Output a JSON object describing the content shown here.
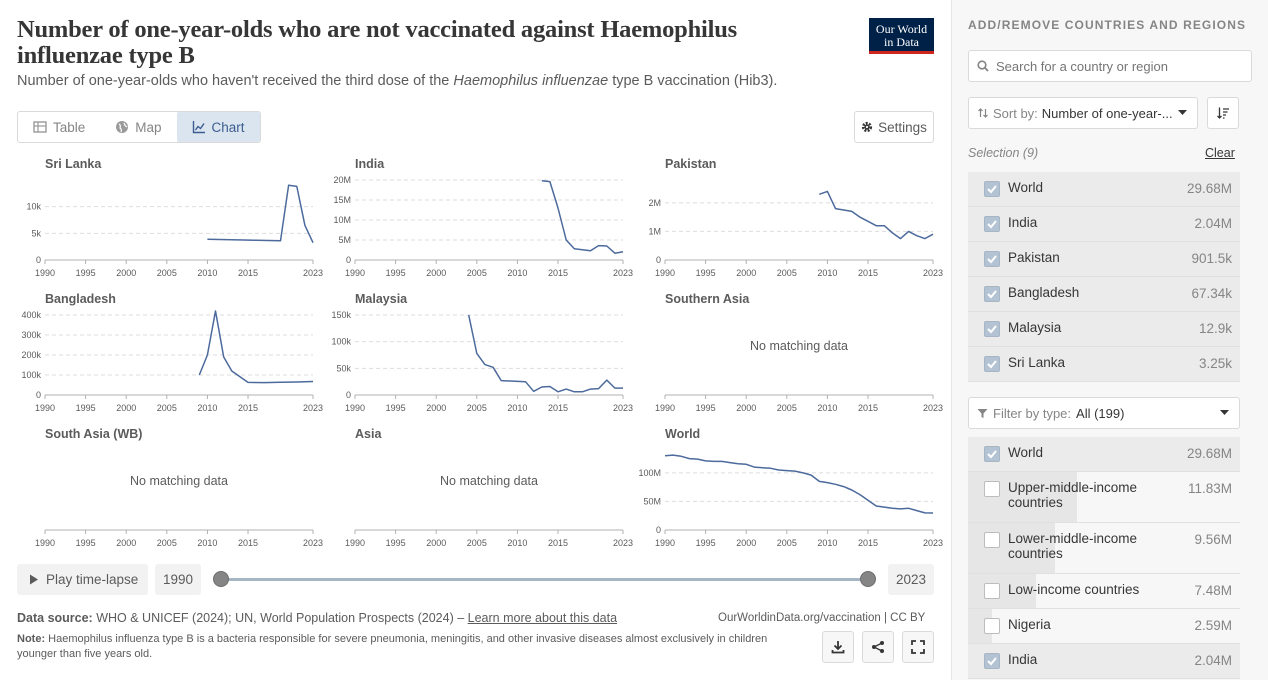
{
  "header": {
    "title": "Number of one-year-olds who are not vaccinated against Haemophilus influenzae type B",
    "subtitle_pre": "Number of one-year-olds who haven't received the third dose of the ",
    "subtitle_italic": "Haemophilus influenzae",
    "subtitle_post": " type B vaccination (Hib3).",
    "logo_line1": "Our World",
    "logo_line2": "in Data"
  },
  "tabs": [
    {
      "label": "Table",
      "icon": "table-icon"
    },
    {
      "label": "Map",
      "icon": "globe-icon"
    },
    {
      "label": "Chart",
      "icon": "line-chart-icon",
      "active": true
    }
  ],
  "settings_label": "Settings",
  "no_data_text": "No matching data",
  "chart_data": [
    {
      "type": "line",
      "title": "Sri Lanka",
      "xlim": [
        1990,
        2023
      ],
      "xticks": [
        "1990",
        "1995",
        "2000",
        "2005",
        "2010",
        "2015",
        "2023"
      ],
      "yticks": [
        "0",
        "5k",
        "10k"
      ],
      "ylim": [
        0,
        15000
      ],
      "x": [
        2010,
        2013,
        2016,
        2019,
        2020,
        2021,
        2022,
        2023
      ],
      "values": [
        3900,
        3800,
        3700,
        3600,
        14000,
        13800,
        6500,
        3250
      ]
    },
    {
      "type": "line",
      "title": "India",
      "xlim": [
        1990,
        2023
      ],
      "xticks": [
        "1990",
        "1995",
        "2000",
        "2005",
        "2010",
        "2015",
        "2023"
      ],
      "yticks": [
        "0",
        "5M",
        "10M",
        "15M",
        "20M"
      ],
      "ylim": [
        0,
        20000000
      ],
      "x": [
        2013,
        2014,
        2015,
        2016,
        2017,
        2019,
        2020,
        2021,
        2022,
        2023
      ],
      "values": [
        19800000,
        19600000,
        13000000,
        5000000,
        2800000,
        2300000,
        3600000,
        3500000,
        1700000,
        2040000
      ]
    },
    {
      "type": "line",
      "title": "Pakistan",
      "xlim": [
        1990,
        2023
      ],
      "xticks": [
        "1990",
        "1995",
        "2000",
        "2005",
        "2010",
        "2015",
        "2023"
      ],
      "yticks": [
        "0",
        "1M",
        "2M"
      ],
      "ylim": [
        0,
        2800000
      ],
      "x": [
        2009,
        2010,
        2011,
        2013,
        2014,
        2016,
        2017,
        2018,
        2019,
        2020,
        2021,
        2022,
        2023
      ],
      "values": [
        2300000,
        2400000,
        1800000,
        1700000,
        1500000,
        1200000,
        1200000,
        950000,
        750000,
        1000000,
        850000,
        750000,
        901500
      ]
    },
    {
      "type": "line",
      "title": "Bangladesh",
      "xlim": [
        1990,
        2023
      ],
      "xticks": [
        "1990",
        "1995",
        "2000",
        "2005",
        "2010",
        "2015",
        "2023"
      ],
      "yticks": [
        "0",
        "100k",
        "200k",
        "300k",
        "400k"
      ],
      "ylim": [
        0,
        400000
      ],
      "x": [
        2009,
        2010,
        2011,
        2012,
        2013,
        2015,
        2017,
        2019,
        2021,
        2023
      ],
      "values": [
        100000,
        200000,
        420000,
        190000,
        120000,
        63000,
        62000,
        64000,
        65000,
        67340
      ]
    },
    {
      "type": "line",
      "title": "Malaysia",
      "xlim": [
        1990,
        2023
      ],
      "xticks": [
        "1990",
        "1995",
        "2000",
        "2005",
        "2010",
        "2015",
        "2023"
      ],
      "yticks": [
        "0",
        "50k",
        "100k",
        "150k"
      ],
      "ylim": [
        0,
        150000
      ],
      "x": [
        2004,
        2005,
        2006,
        2007,
        2008,
        2011,
        2012,
        2013,
        2014,
        2015,
        2016,
        2017,
        2018,
        2019,
        2020,
        2021,
        2022,
        2023
      ],
      "values": [
        150000,
        78000,
        57000,
        52000,
        27000,
        25000,
        7000,
        15000,
        16000,
        6000,
        11000,
        6000,
        6000,
        11000,
        12000,
        28000,
        13000,
        12900
      ]
    },
    {
      "type": "line",
      "title": "Southern Asia",
      "xlim": [
        1990,
        2023
      ],
      "xticks": [
        "1990",
        "1995",
        "2000",
        "2005",
        "2010",
        "2015",
        "2023"
      ],
      "yticks": [],
      "nodata": true,
      "x": [],
      "values": []
    },
    {
      "type": "line",
      "title": "South Asia (WB)",
      "xlim": [
        1990,
        2023
      ],
      "xticks": [
        "1990",
        "1995",
        "2000",
        "2005",
        "2010",
        "2015",
        "2023"
      ],
      "yticks": [],
      "nodata": true,
      "x": [],
      "values": []
    },
    {
      "type": "line",
      "title": "Asia",
      "xlim": [
        1990,
        2023
      ],
      "xticks": [
        "1990",
        "1995",
        "2000",
        "2005",
        "2010",
        "2015",
        "2023"
      ],
      "yticks": [],
      "nodata": true,
      "x": [],
      "values": []
    },
    {
      "type": "line",
      "title": "World",
      "xlim": [
        1990,
        2023
      ],
      "xticks": [
        "1990",
        "1995",
        "2000",
        "2005",
        "2010",
        "2015",
        "2023"
      ],
      "yticks": [
        "0",
        "50M",
        "100M"
      ],
      "ylim": [
        0,
        140000000
      ],
      "x": [
        1990,
        1991,
        1992,
        1993,
        1994,
        1995,
        1996,
        1997,
        1998,
        1999,
        2000,
        2001,
        2002,
        2003,
        2004,
        2005,
        2006,
        2007,
        2008,
        2009,
        2010,
        2011,
        2012,
        2013,
        2014,
        2015,
        2016,
        2017,
        2018,
        2019,
        2020,
        2021,
        2022,
        2023
      ],
      "values": [
        130000000,
        131000000,
        129000000,
        125000000,
        124000000,
        121000000,
        120000000,
        120000000,
        118000000,
        116000000,
        115000000,
        110000000,
        109000000,
        108000000,
        105000000,
        104000000,
        103000000,
        100000000,
        96000000,
        85000000,
        83000000,
        80000000,
        76000000,
        70000000,
        62000000,
        52000000,
        42000000,
        40000000,
        38000000,
        37000000,
        38000000,
        34000000,
        30000000,
        29680000
      ]
    }
  ],
  "timeline": {
    "play_label": "Play time-lapse",
    "start_year": "1990",
    "end_year": "2023"
  },
  "footer": {
    "source_label": "Data source:",
    "source_text": " WHO & UNICEF (2024); UN, World Population Prospects (2024) – ",
    "learn_more": "Learn more about this data",
    "license": "OurWorldinData.org/vaccination | CC BY",
    "note_label": "Note:",
    "note_text": " Haemophilus influenza type B is a bacteria responsible for severe pneumonia, meningitis, and other invasive diseases almost exclusively in children younger than five years old."
  },
  "sidebar": {
    "title": "ADD/REMOVE COUNTRIES AND REGIONS",
    "search_placeholder": "Search for a country or region",
    "sort_label": "Sort by:",
    "sort_value": "Number of one-year-...",
    "selection_label": "Selection (9)",
    "clear_label": "Clear",
    "selected": [
      {
        "name": "World",
        "value": "29.68M",
        "checked": true,
        "frac": 1.0
      },
      {
        "name": "India",
        "value": "2.04M",
        "checked": true,
        "frac": 0.0
      },
      {
        "name": "Pakistan",
        "value": "901.5k",
        "checked": true,
        "frac": 0.0
      },
      {
        "name": "Bangladesh",
        "value": "67.34k",
        "checked": true,
        "frac": 0.0
      },
      {
        "name": "Malaysia",
        "value": "12.9k",
        "checked": true,
        "frac": 0.0
      },
      {
        "name": "Sri Lanka",
        "value": "3.25k",
        "checked": true,
        "frac": 0.0
      }
    ],
    "filter_label": "Filter by type:",
    "filter_value": "All (199)",
    "all_items": [
      {
        "name": "World",
        "value": "29.68M",
        "checked": true,
        "frac": 1.0
      },
      {
        "name": "Upper-middle-income countries",
        "value": "11.83M",
        "checked": false,
        "frac": 0.4
      },
      {
        "name": "Lower-middle-income countries",
        "value": "9.56M",
        "checked": false,
        "frac": 0.32
      },
      {
        "name": "Low-income countries",
        "value": "7.48M",
        "checked": false,
        "frac": 0.25
      },
      {
        "name": "Nigeria",
        "value": "2.59M",
        "checked": false,
        "frac": 0.09
      },
      {
        "name": "India",
        "value": "2.04M",
        "checked": true,
        "frac": 0.07
      }
    ]
  },
  "colors": {
    "line": "#4c6a9c",
    "grid": "#dddddd",
    "axis": "#b0b0b0",
    "text": "#5b5b5b",
    "title": "#363636"
  }
}
